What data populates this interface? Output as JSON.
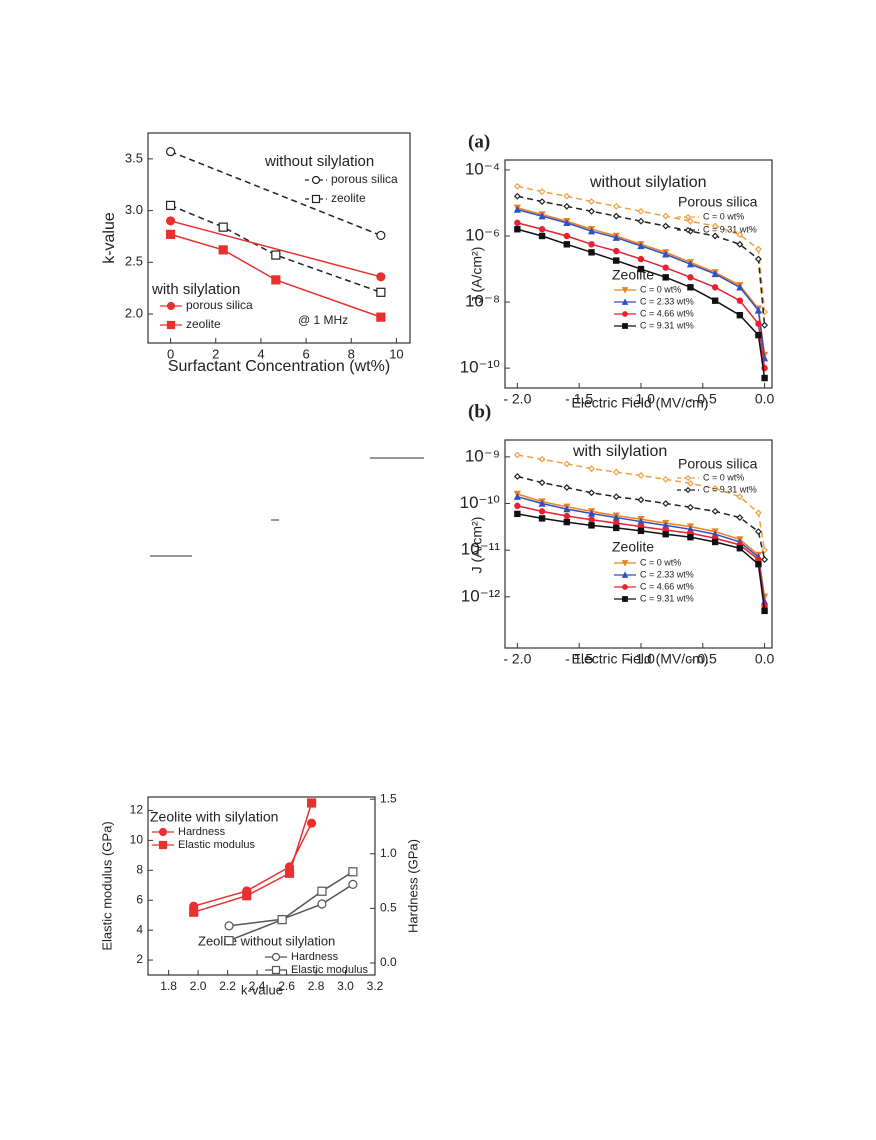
{
  "chart_data": [
    {
      "type": "line",
      "xlabel": "Surfactant Concentration (wt%)",
      "ylabel": "k-value",
      "xlim": [
        -1,
        10.6
      ],
      "ylim": [
        1.72,
        3.75
      ],
      "xticks": [
        0,
        2,
        4,
        6,
        8,
        10
      ],
      "yticks": [
        {
          "value": 2.0,
          "label": "2.0"
        },
        2.5,
        {
          "value": 3.0,
          "label": "3.0"
        },
        3.5
      ],
      "annotations": [
        {
          "text": "without silylation",
          "color": "#222222"
        },
        {
          "text": "with silylation",
          "color": "#e8312f"
        },
        {
          "text": "@ 1 MHz",
          "color": "#222222"
        }
      ],
      "series": [
        {
          "name": "porous silica",
          "color": "#222222",
          "marker": "circle",
          "filled": false,
          "dashed": true,
          "x": [
            0,
            9.31
          ],
          "values": [
            3.57,
            2.76
          ]
        },
        {
          "name": "zeolite",
          "color": "#222222",
          "marker": "square",
          "filled": false,
          "dashed": true,
          "x": [
            0,
            2.33,
            4.66,
            9.31
          ],
          "values": [
            3.05,
            2.84,
            2.57,
            2.21
          ]
        },
        {
          "name": "porous silica",
          "color": "#e8312f",
          "marker": "circle",
          "filled": true,
          "dashed": false,
          "x": [
            0,
            9.31
          ],
          "values": [
            2.9,
            2.36
          ]
        },
        {
          "name": "zeolite",
          "color": "#e8312f",
          "marker": "square",
          "filled": true,
          "dashed": false,
          "x": [
            0,
            2.33,
            4.66,
            9.31
          ],
          "values": [
            2.77,
            2.62,
            2.33,
            1.97
          ]
        }
      ]
    },
    {
      "type": "line",
      "panel_label": "(a)",
      "log_y": true,
      "xlabel": "Electric Field (MV/cm)",
      "ylabel": "J (A/cm²)",
      "xlim": [
        -2.1,
        0.06
      ],
      "ylim": [
        2.5e-11,
        0.0002
      ],
      "xticks": [
        {
          "value": -2.0,
          "label": "- 2.0"
        },
        {
          "value": -1.5,
          "label": "- 1.5"
        },
        {
          "value": -1.0,
          "label": "- 1.0"
        },
        {
          "value": -0.5,
          "label": "- 0.5"
        },
        {
          "value": 0,
          "label": "0.0"
        }
      ],
      "yticks": [
        {
          "value": 0.0001,
          "label": "10⁻⁴"
        },
        {
          "value": 1e-06,
          "label": "10⁻⁶"
        },
        {
          "value": 1e-08,
          "label": "10⁻⁸"
        },
        {
          "value": 1e-10,
          "label": "10⁻¹⁰"
        }
      ],
      "annotations": [
        {
          "text": "without silylation",
          "color": "#111111"
        },
        {
          "text": "Porous silica",
          "color": "#111111"
        },
        {
          "text": "Zeolite",
          "color": "#111111"
        }
      ],
      "x": [
        -2.0,
        -1.8,
        -1.6,
        -1.4,
        -1.2,
        -1.0,
        -0.8,
        -0.6,
        -0.4,
        -0.2,
        -0.05,
        0.0
      ],
      "series": [
        {
          "name": "C = 0 wt%",
          "color": "#f0a040",
          "marker": "diamond",
          "filled": false,
          "dashed": true,
          "values": [
            3.2e-05,
            2.2e-05,
            1.6e-05,
            1.1e-05,
            7.9e-06,
            5.6e-06,
            4e-06,
            2.8e-06,
            2e-06,
            1.1e-06,
            4e-07,
            5e-09
          ]
        },
        {
          "name": "C = 9.31 wt%",
          "color": "#222222",
          "marker": "diamond",
          "filled": false,
          "dashed": true,
          "values": [
            1.6e-05,
            1.1e-05,
            7.9e-06,
            5.6e-06,
            4e-06,
            2.8e-06,
            2e-06,
            1.4e-06,
            1e-06,
            5.6e-07,
            2e-07,
            2e-09
          ]
        },
        {
          "name": "C = 0 wt%",
          "color": "#f08020",
          "marker": "triangle-down",
          "filled": true,
          "dashed": false,
          "values": [
            7.1e-06,
            4.5e-06,
            2.8e-06,
            1.6e-06,
            1e-06,
            5.6e-07,
            3.2e-07,
            1.6e-07,
            7.9e-08,
            3.2e-08,
            6.3e-09,
            2.5e-10
          ]
        },
        {
          "name": "C = 2.33 wt%",
          "color": "#3050c0",
          "marker": "triangle-up",
          "filled": true,
          "dashed": false,
          "values": [
            6.3e-06,
            4e-06,
            2.5e-06,
            1.4e-06,
            8.9e-07,
            5e-07,
            2.8e-07,
            1.4e-07,
            7.1e-08,
            2.8e-08,
            5.6e-09,
            2e-10
          ]
        },
        {
          "name": "C = 4.66 wt%",
          "color": "#e82030",
          "marker": "circle",
          "filled": true,
          "dashed": false,
          "values": [
            2.5e-06,
            1.6e-06,
            1e-06,
            5.6e-07,
            3.5e-07,
            2e-07,
            1.1e-07,
            5.6e-08,
            2.8e-08,
            1.1e-08,
            2.2e-09,
            1e-10
          ]
        },
        {
          "name": "C = 9.31 wt%",
          "color": "#111111",
          "marker": "square",
          "filled": true,
          "dashed": false,
          "values": [
            1.6e-06,
            1e-06,
            5.6e-07,
            3.2e-07,
            1.8e-07,
            1e-07,
            5.6e-08,
            2.8e-08,
            1.1e-08,
            4e-09,
            1e-09,
            5e-11
          ]
        }
      ]
    },
    {
      "type": "line",
      "panel_label": "(b)",
      "log_y": true,
      "xlabel": "Electric Field (MV/cm)",
      "ylabel": "J (A/cm²)",
      "xlim": [
        -2.1,
        0.06
      ],
      "ylim": [
        8e-14,
        2.3e-09
      ],
      "xticks": [
        {
          "value": -2.0,
          "label": "- 2.0"
        },
        {
          "value": -1.5,
          "label": "- 1.5"
        },
        {
          "value": -1.0,
          "label": "- 1.0"
        },
        {
          "value": -0.5,
          "label": "- 0.5"
        },
        {
          "value": 0,
          "label": "0.0"
        }
      ],
      "yticks": [
        {
          "value": 1e-09,
          "label": "10⁻⁹"
        },
        {
          "value": 1e-10,
          "label": "10⁻¹⁰"
        },
        {
          "value": 1e-11,
          "label": "10⁻¹¹"
        },
        {
          "value": 1e-12,
          "label": "10⁻¹²"
        }
      ],
      "annotations": [
        {
          "text": "with silylation",
          "color": "#111111"
        },
        {
          "text": "Porous silica",
          "color": "#111111"
        },
        {
          "text": "Zeolite",
          "color": "#111111"
        }
      ],
      "x": [
        -2.0,
        -1.8,
        -1.6,
        -1.4,
        -1.2,
        -1.0,
        -0.8,
        -0.6,
        -0.4,
        -0.2,
        -0.05,
        0.0
      ],
      "series": [
        {
          "name": "C = 0 wt%",
          "color": "#f0a040",
          "marker": "diamond",
          "filled": false,
          "dashed": true,
          "values": [
            1.1e-09,
            8.9e-10,
            7.1e-10,
            5.6e-10,
            4.7e-10,
            4e-10,
            3.3e-10,
            2.7e-10,
            2.1e-10,
            1.4e-10,
            6.3e-11,
            1e-11
          ]
        },
        {
          "name": "C = 9.31 wt%",
          "color": "#222222",
          "marker": "diamond",
          "filled": false,
          "dashed": true,
          "values": [
            3.8e-10,
            2.8e-10,
            2.2e-10,
            1.7e-10,
            1.4e-10,
            1.2e-10,
            1e-10,
            8.3e-11,
            6.8e-11,
            5e-11,
            2.5e-11,
            6.3e-12
          ]
        },
        {
          "name": "C = 0 wt%",
          "color": "#f08020",
          "marker": "triangle-down",
          "filled": true,
          "dashed": false,
          "values": [
            1.6e-10,
            1.1e-10,
            8.5e-11,
            6.8e-11,
            5.5e-11,
            4.6e-11,
            3.8e-11,
            3.2e-11,
            2.5e-11,
            1.7e-11,
            7.9e-12,
            1e-12
          ]
        },
        {
          "name": "C = 2.33 wt%",
          "color": "#3050c0",
          "marker": "triangle-up",
          "filled": true,
          "dashed": false,
          "values": [
            1.4e-10,
            1e-10,
            7.6e-11,
            6.1e-11,
            5e-11,
            4.1e-11,
            3.4e-11,
            2.8e-11,
            2.2e-11,
            1.5e-11,
            7.1e-12,
            8e-13
          ]
        },
        {
          "name": "C = 4.66 wt%",
          "color": "#e82030",
          "marker": "circle",
          "filled": true,
          "dashed": false,
          "values": [
            8.9e-11,
            6.8e-11,
            5.4e-11,
            4.5e-11,
            3.8e-11,
            3.2e-11,
            2.7e-11,
            2.3e-11,
            1.8e-11,
            1.3e-11,
            6.3e-12,
            6.3e-13
          ]
        },
        {
          "name": "C = 9.31 wt%",
          "color": "#111111",
          "marker": "square",
          "filled": true,
          "dashed": false,
          "values": [
            6e-11,
            4.8e-11,
            4e-11,
            3.4e-11,
            3e-11,
            2.6e-11,
            2.2e-11,
            1.9e-11,
            1.5e-11,
            1.1e-11,
            5e-12,
            5e-13
          ]
        }
      ]
    },
    {
      "type": "line",
      "xlabel": "k-value",
      "ylabel": "Elastic modulus (GPa)",
      "y2label": "Hardness (GPa)",
      "xlim": [
        1.66,
        3.2
      ],
      "ylim": [
        1.0,
        12.9
      ],
      "y2lim": [
        -0.11,
        1.52
      ],
      "xticks": [
        1.8,
        {
          "value": 2.0,
          "label": "2.0"
        },
        2.2,
        2.4,
        2.6,
        2.8,
        {
          "value": 3.0,
          "label": "3.0"
        },
        3.2
      ],
      "yticks": [
        2,
        4,
        6,
        8,
        10,
        12
      ],
      "y2ticks": [
        {
          "value": 0,
          "label": "0.0"
        },
        0.5,
        {
          "value": 1.0,
          "label": "1.0"
        },
        1.5
      ],
      "annotations": [
        {
          "text": "Zeolite with silylation",
          "color": "#e8312f"
        },
        {
          "text": "Zeolite without silylation",
          "color": "#333333"
        }
      ],
      "series": [
        {
          "name": "Hardness",
          "color": "#e8312f",
          "marker": "circle",
          "filled": true,
          "dashed": false,
          "axis": "y2",
          "x": [
            1.97,
            2.33,
            2.62,
            2.77
          ],
          "values": [
            0.52,
            0.66,
            0.88,
            1.28
          ]
        },
        {
          "name": "Elastic modulus",
          "color": "#e8312f",
          "marker": "square",
          "filled": true,
          "dashed": false,
          "x": [
            1.97,
            2.33,
            2.62,
            2.77
          ],
          "values": [
            5.2,
            6.3,
            7.8,
            12.5
          ]
        },
        {
          "name": "Hardness",
          "color": "#555555",
          "marker": "circle",
          "filled": false,
          "dashed": false,
          "axis": "y2",
          "x": [
            2.21,
            2.57,
            2.84,
            3.05
          ],
          "values": [
            0.34,
            0.4,
            0.54,
            0.72
          ]
        },
        {
          "name": "Elastic modulus",
          "color": "#555555",
          "marker": "square",
          "filled": false,
          "dashed": false,
          "x": [
            2.21,
            2.57,
            2.84,
            3.05
          ],
          "values": [
            3.3,
            4.7,
            6.6,
            7.9
          ]
        }
      ]
    }
  ]
}
